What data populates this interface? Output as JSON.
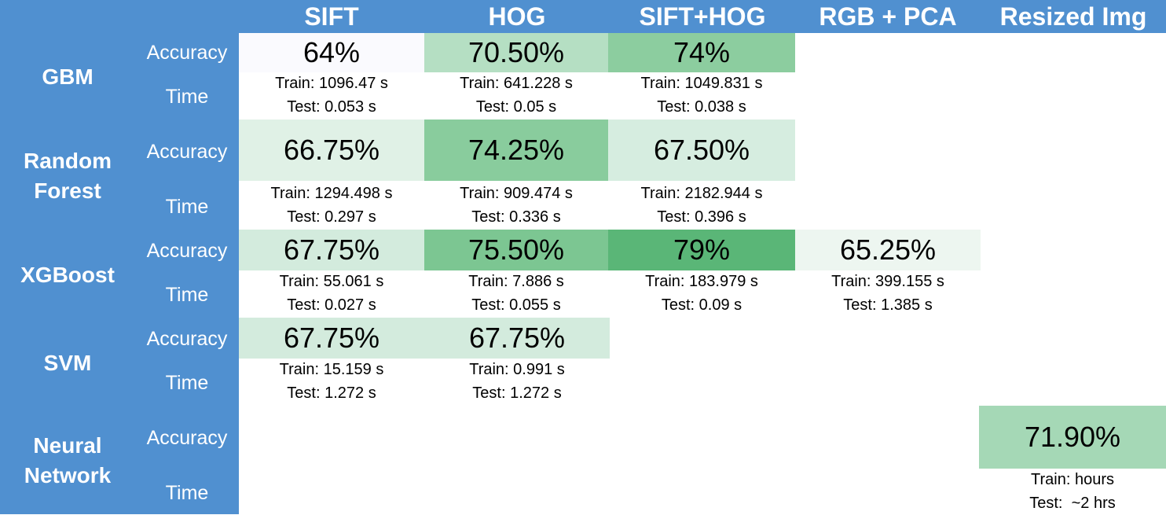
{
  "columns": [
    "SIFT",
    "HOG",
    "SIFT+HOG",
    "RGB + PCA",
    "Resized Img"
  ],
  "row_labels": {
    "accuracy": "Accuracy",
    "time": "Time"
  },
  "models": [
    {
      "name": "GBM",
      "cells": [
        {
          "feature": "SIFT",
          "accuracy": "64%",
          "train": "Train: 1096.47 s",
          "test": "Test: 0.053 s",
          "shade": "#fafafe"
        },
        {
          "feature": "HOG",
          "accuracy": "70.50%",
          "train": "Train: 641.228 s",
          "test": "Test: 0.05 s",
          "shade": "#b5dfc3"
        },
        {
          "feature": "SIFT+HOG",
          "accuracy": "74%",
          "train": "Train: 1049.831 s",
          "test": "Test: 0.038 s",
          "shade": "#8ccd9f"
        }
      ]
    },
    {
      "name_lines": [
        "Random",
        "Forest"
      ],
      "cells": [
        {
          "feature": "SIFT",
          "accuracy": "66.75%",
          "train": "Train: 1294.498 s",
          "test": "Test: 0.297 s",
          "shade": "#e0f1e6"
        },
        {
          "feature": "HOG",
          "accuracy": "74.25%",
          "train": "Train: 909.474 s",
          "test": "Test: 0.336 s",
          "shade": "#89cc9d"
        },
        {
          "feature": "SIFT+HOG",
          "accuracy": "67.50%",
          "train": "Train: 2182.944 s",
          "test": "Test: 0.396 s",
          "shade": "#d6ede0"
        }
      ]
    },
    {
      "name": "XGBoost",
      "cells": [
        {
          "feature": "SIFT",
          "accuracy": "67.75%",
          "train": "Train: 55.061 s",
          "test": "Test: 0.027 s",
          "shade": "#d3ebdd"
        },
        {
          "feature": "HOG",
          "accuracy": "75.50%",
          "train": "Train: 7.886 s",
          "test": "Test: 0.055 s",
          "shade": "#7cc692"
        },
        {
          "feature": "SIFT+HOG",
          "accuracy": "79%",
          "train": "Train: 183.979 s",
          "test": "Test: 0.09 s",
          "shade": "#5ab677"
        },
        {
          "feature": "RGB + PCA",
          "accuracy": "65.25%",
          "train": "Train: 399.155 s",
          "test": "Test: 1.385 s",
          "shade": "#edf6f0"
        }
      ]
    },
    {
      "name": "SVM",
      "cells": [
        {
          "feature": "SIFT",
          "accuracy": "67.75%",
          "train": "Train: 15.159 s",
          "test": "Test: 1.272 s",
          "shade": "#d3ebdd"
        },
        {
          "feature": "HOG",
          "accuracy": "67.75%",
          "train": "Train: 0.991 s",
          "test": "Test: 1.272 s",
          "shade": "#d3ebdd"
        }
      ]
    },
    {
      "name_lines": [
        "Neural",
        "Network"
      ],
      "cells": [
        {
          "feature": "Resized Img",
          "accuracy": "71.90%",
          "train": "Train: hours",
          "test": "Test:  ~2 hrs",
          "shade": "#a5d8b6"
        }
      ]
    }
  ],
  "colors": {
    "header_blue": "#5090d0",
    "text_white": "#ffffff"
  }
}
